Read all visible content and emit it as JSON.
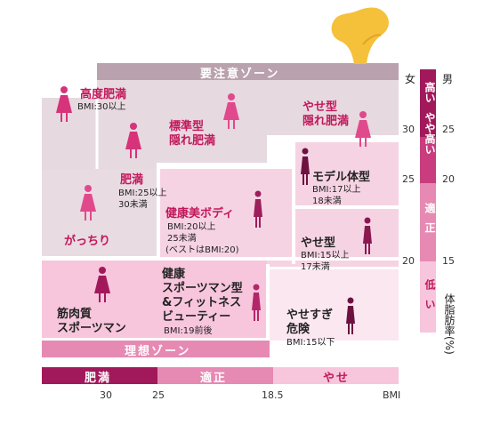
{
  "zones": {
    "caution": "要注意ゾーン",
    "ideal": "理想ゾーン"
  },
  "categories": [
    {
      "id": "high-obesity",
      "name": [
        "高度肥満"
      ],
      "criteria": [
        "BMI:30以上"
      ]
    },
    {
      "id": "hidden-obesity-standard",
      "name": [
        "標準型",
        "隠れ肥満"
      ],
      "criteria": []
    },
    {
      "id": "hidden-obesity-thin",
      "name": [
        "やせ型",
        "隠れ肥満"
      ],
      "criteria": []
    },
    {
      "id": "obesity",
      "name": [
        "肥満"
      ],
      "criteria": [
        "BMI:25以上",
        "30未満"
      ]
    },
    {
      "id": "stocky",
      "name": [
        "がっちり"
      ],
      "criteria": []
    },
    {
      "id": "healthy-beauty",
      "name": [
        "健康美ボディ"
      ],
      "criteria": [
        "BMI:20以上",
        "25未満",
        "(ベストはBMI:20)"
      ]
    },
    {
      "id": "model",
      "name": [
        "モデル体型"
      ],
      "criteria": [
        "BMI:17以上",
        "18未満"
      ]
    },
    {
      "id": "thin",
      "name": [
        "やせ型"
      ],
      "criteria": [
        "BMI:15以上",
        "17未満"
      ]
    },
    {
      "id": "muscular",
      "name": [
        "筋肉質",
        "スポーツマン"
      ],
      "criteria": []
    },
    {
      "id": "healthy-sport",
      "name": [
        "健康",
        "スポーツマン型",
        "&フィットネス",
        "ビューティー"
      ],
      "criteria": [
        "BMI:19前後"
      ]
    },
    {
      "id": "too-thin",
      "name": [
        "やせすぎ",
        "危険"
      ],
      "criteria": [
        "BMI:15以下"
      ]
    }
  ],
  "bmi_axis": {
    "segments": [
      "肥満",
      "適正",
      "やせ"
    ],
    "ticks": [
      "30",
      "25",
      "18.5"
    ],
    "label": "BMI"
  },
  "body_fat_axis": {
    "female_label": "女",
    "male_label": "男",
    "female_ticks": [
      "30",
      "25",
      "20"
    ],
    "male_ticks": [
      "25",
      "20",
      "15"
    ],
    "levels": [
      "高い",
      "やや高い",
      "適正",
      "低い"
    ],
    "label": "体脂肪率(%)"
  },
  "colors": {
    "dark": "#a2195b",
    "medium": "#e0609a",
    "light": "#f7c6dc",
    "pale": "#fbe3ee",
    "gray": "#e7d9e0",
    "hand": "#f5c03a"
  }
}
